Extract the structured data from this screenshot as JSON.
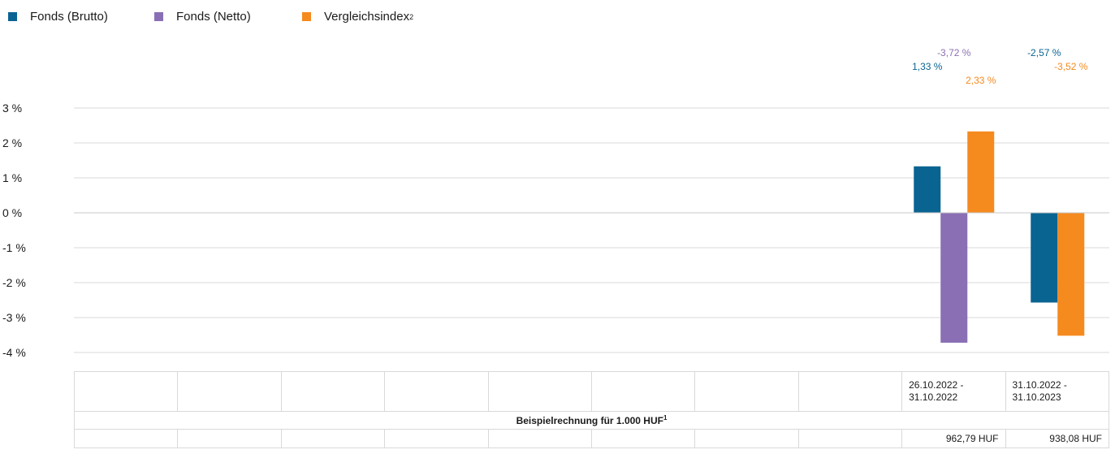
{
  "legend": [
    {
      "label": "Fonds (Brutto)",
      "superscript": "",
      "color": "#0a6492"
    },
    {
      "label": "Fonds (Netto)",
      "superscript": "",
      "color": "#8a6fb5"
    },
    {
      "label": "Vergleichsindex",
      "superscript": "2",
      "color": "#f58a1f"
    }
  ],
  "table": {
    "periods": [
      "",
      "",
      "",
      "",
      "",
      "",
      "",
      "",
      "26.10.2022 -\n31.10.2022",
      "31.10.2022 -\n31.10.2023"
    ],
    "example_title": "Beispielrechnung für 1.000 HUF",
    "example_title_sup": "1",
    "example_values": [
      "",
      "",
      "",
      "",
      "",
      "",
      "",
      "",
      "962,79 HUF",
      "938,08 HUF"
    ]
  },
  "chart_data": {
    "type": "bar",
    "categories": [
      "",
      "",
      "",
      "",
      "",
      "",
      "",
      "",
      "26.10.2022 - 31.10.2022",
      "31.10.2022 - 31.10.2023"
    ],
    "ylim": [
      -4,
      3
    ],
    "yticks": [
      3,
      2,
      1,
      0,
      -1,
      -2,
      -3,
      -4
    ],
    "ytick_suffix": " %",
    "grid": true,
    "legend_position": "top-left",
    "series": [
      {
        "name": "Fonds (Brutto)",
        "color": "#0a6492",
        "values": [
          null,
          null,
          null,
          null,
          null,
          null,
          null,
          null,
          1.33,
          -2.57
        ],
        "labels": [
          "",
          "",
          "",
          "",
          "",
          "",
          "",
          "",
          "1,33 %",
          "-2,57 %"
        ]
      },
      {
        "name": "Fonds (Netto)",
        "color": "#8a6fb5",
        "values": [
          null,
          null,
          null,
          null,
          null,
          null,
          null,
          null,
          -3.72,
          null
        ],
        "labels": [
          "",
          "",
          "",
          "",
          "",
          "",
          "",
          "",
          "-3,72 %",
          ""
        ]
      },
      {
        "name": "Vergleichsindex",
        "color": "#f58a1f",
        "values": [
          null,
          null,
          null,
          null,
          null,
          null,
          null,
          null,
          2.33,
          -3.52
        ],
        "labels": [
          "",
          "",
          "",
          "",
          "",
          "",
          "",
          "",
          "2,33 %",
          "-3,52 %"
        ]
      }
    ]
  }
}
